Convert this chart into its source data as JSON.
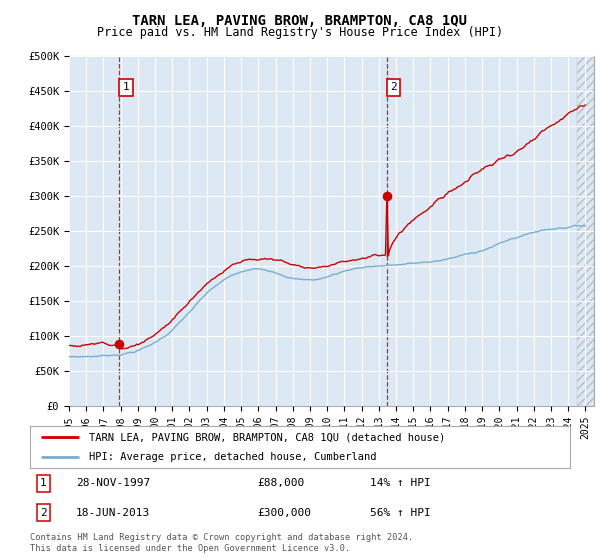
{
  "title": "TARN LEA, PAVING BROW, BRAMPTON, CA8 1QU",
  "subtitle": "Price paid vs. HM Land Registry's House Price Index (HPI)",
  "ylabel_ticks": [
    "£0",
    "£50K",
    "£100K",
    "£150K",
    "£200K",
    "£250K",
    "£300K",
    "£350K",
    "£400K",
    "£450K",
    "£500K"
  ],
  "ytick_values": [
    0,
    50000,
    100000,
    150000,
    200000,
    250000,
    300000,
    350000,
    400000,
    450000,
    500000
  ],
  "ylim": [
    0,
    500000
  ],
  "xlim_start": 1995.0,
  "xlim_end": 2025.5,
  "background_color": "#dce9f5",
  "plot_bg": "#dce9f5",
  "red_line_color": "#cc0000",
  "blue_line_color": "#7aadcf",
  "transaction1_x": 1997.91,
  "transaction1_y": 88000,
  "transaction2_x": 2013.46,
  "transaction2_y": 300000,
  "annotation1_label": "1",
  "annotation2_label": "2",
  "legend_label_red": "TARN LEA, PAVING BROW, BRAMPTON, CA8 1QU (detached house)",
  "legend_label_blue": "HPI: Average price, detached house, Cumberland",
  "footnote": "Contains HM Land Registry data © Crown copyright and database right 2024.\nThis data is licensed under the Open Government Licence v3.0.",
  "xtick_years": [
    1995,
    1996,
    1997,
    1998,
    1999,
    2000,
    2001,
    2002,
    2003,
    2004,
    2005,
    2006,
    2007,
    2008,
    2009,
    2010,
    2011,
    2012,
    2013,
    2014,
    2015,
    2016,
    2017,
    2018,
    2019,
    2020,
    2021,
    2022,
    2023,
    2024,
    2025
  ]
}
